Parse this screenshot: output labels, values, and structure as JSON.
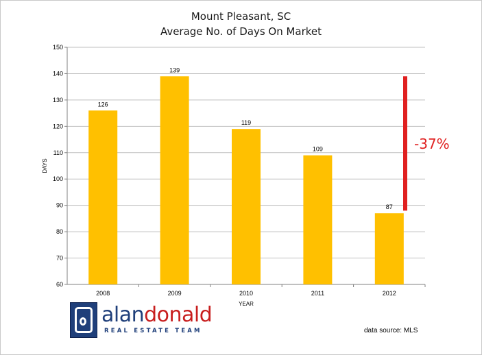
{
  "chart_data": {
    "type": "bar",
    "title": "Mount Pleasant, SC",
    "subtitle": "Average No. of Days On Market",
    "xlabel": "YEAR",
    "ylabel": "DAYS",
    "categories": [
      "2008",
      "2009",
      "2010",
      "2011",
      "2012"
    ],
    "values": [
      126,
      139,
      119,
      109,
      87
    ],
    "data_labels": [
      "126",
      "139",
      "119",
      "109",
      "87"
    ],
    "ylim": [
      60,
      150
    ],
    "yticks": [
      60,
      70,
      80,
      90,
      100,
      110,
      120,
      130,
      140,
      150
    ],
    "grid": true,
    "bar_color": "#ffc000",
    "annotation": {
      "text": "-37%",
      "color": "#e02020",
      "from_value": 139,
      "to_value": 88
    }
  },
  "logo": {
    "part1": "alan",
    "part2": "donald",
    "tagline": "REAL ESTATE TEAM",
    "primary_color": "#1f3f7a",
    "accent_color": "#c81e1e"
  },
  "source_note": "data source: MLS"
}
